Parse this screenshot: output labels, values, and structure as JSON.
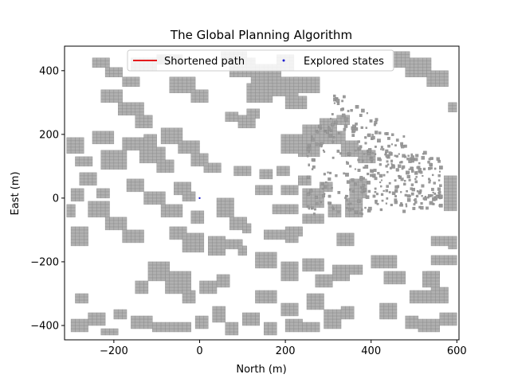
{
  "chart_data": {
    "type": "scatter",
    "title": "The Global Planning Algorithm",
    "xlabel": "North (m)",
    "ylabel": "East (m)",
    "xlim": [
      -315,
      605
    ],
    "ylim": [
      -445,
      477
    ],
    "xticks": [
      -200,
      0,
      200,
      400,
      600
    ],
    "yticks": [
      -400,
      -200,
      0,
      200,
      400
    ],
    "xtick_labels": [
      "−200",
      "0",
      "200",
      "400",
      "600"
    ],
    "ytick_labels": [
      "−400",
      "−200",
      "0",
      "200",
      "400"
    ],
    "grid": false,
    "legend": {
      "placement": "top-center",
      "columns": 2,
      "entries": [
        {
          "label": "Shortened path",
          "color": "#e41a1c",
          "marker": "line"
        },
        {
          "label": "Explored states",
          "color": "#1f1fd0",
          "marker": "dot"
        }
      ]
    },
    "series": [
      {
        "name": "Shortened path",
        "color": "#e41a1c",
        "points": []
      },
      {
        "name": "Explored states",
        "color": "#1f1fd0",
        "points": [
          [
            0,
            0
          ]
        ]
      }
    ],
    "obstacle_cell_size": 10,
    "obstacle_color": "#b0b0b0",
    "obstacle_edge_color": "#8a8a8a",
    "obstacles": [
      [
        -250,
        410,
        40,
        30
      ],
      [
        -220,
        380,
        40,
        30
      ],
      [
        -180,
        350,
        40,
        30
      ],
      [
        -160,
        400,
        60,
        40
      ],
      [
        -100,
        420,
        60,
        30
      ],
      [
        -70,
        330,
        60,
        50
      ],
      [
        -20,
        300,
        40,
        40
      ],
      [
        -230,
        300,
        50,
        40
      ],
      [
        -190,
        260,
        60,
        40
      ],
      [
        -150,
        220,
        40,
        40
      ],
      [
        -180,
        150,
        60,
        40
      ],
      [
        -140,
        110,
        60,
        50
      ],
      [
        -100,
        80,
        40,
        40
      ],
      [
        -230,
        90,
        60,
        60
      ],
      [
        -280,
        40,
        40,
        40
      ],
      [
        -310,
        140,
        40,
        50
      ],
      [
        -250,
        170,
        50,
        40
      ],
      [
        -290,
        100,
        40,
        30
      ],
      [
        -130,
        160,
        30,
        40
      ],
      [
        -90,
        170,
        50,
        50
      ],
      [
        -50,
        140,
        50,
        40
      ],
      [
        -20,
        100,
        40,
        40
      ],
      [
        10,
        80,
        40,
        30
      ],
      [
        -170,
        20,
        40,
        40
      ],
      [
        -130,
        -20,
        50,
        40
      ],
      [
        -90,
        -60,
        50,
        40
      ],
      [
        -60,
        10,
        40,
        40
      ],
      [
        -40,
        -10,
        30,
        30
      ],
      [
        -300,
        -10,
        30,
        40
      ],
      [
        -260,
        -60,
        50,
        50
      ],
      [
        -220,
        -100,
        50,
        40
      ],
      [
        -180,
        -140,
        50,
        40
      ],
      [
        -300,
        -150,
        40,
        60
      ],
      [
        -240,
        0,
        30,
        30
      ],
      [
        -310,
        -60,
        20,
        40
      ],
      [
        -20,
        -80,
        30,
        40
      ],
      [
        40,
        -60,
        40,
        60
      ],
      [
        70,
        -100,
        40,
        40
      ],
      [
        100,
        -110,
        20,
        30
      ],
      [
        -70,
        -130,
        40,
        40
      ],
      [
        -40,
        -170,
        50,
        60
      ],
      [
        20,
        -180,
        40,
        60
      ],
      [
        60,
        -160,
        40,
        30
      ],
      [
        90,
        -180,
        20,
        30
      ],
      [
        -120,
        -260,
        50,
        60
      ],
      [
        -80,
        -300,
        60,
        70
      ],
      [
        -40,
        -330,
        30,
        40
      ],
      [
        -150,
        -300,
        30,
        40
      ],
      [
        -200,
        -380,
        30,
        30
      ],
      [
        -160,
        -410,
        50,
        40
      ],
      [
        -110,
        -420,
        50,
        30
      ],
      [
        -60,
        -420,
        40,
        30
      ],
      [
        -10,
        -410,
        30,
        40
      ],
      [
        30,
        -390,
        30,
        50
      ],
      [
        60,
        -430,
        30,
        40
      ],
      [
        100,
        -400,
        40,
        40
      ],
      [
        150,
        -430,
        30,
        40
      ],
      [
        0,
        -300,
        40,
        40
      ],
      [
        40,
        -280,
        30,
        40
      ],
      [
        -300,
        -420,
        40,
        40
      ],
      [
        -260,
        -400,
        40,
        40
      ],
      [
        -230,
        -430,
        40,
        20
      ],
      [
        -290,
        -330,
        30,
        30
      ],
      [
        120,
        360,
        70,
        60
      ],
      [
        160,
        320,
        70,
        60
      ],
      [
        110,
        300,
        60,
        60
      ],
      [
        70,
        380,
        60,
        60
      ],
      [
        50,
        420,
        60,
        40
      ],
      [
        180,
        400,
        40,
        50
      ],
      [
        220,
        330,
        60,
        50
      ],
      [
        200,
        280,
        50,
        40
      ],
      [
        90,
        220,
        40,
        40
      ],
      [
        110,
        250,
        30,
        30
      ],
      [
        60,
        240,
        30,
        30
      ],
      [
        190,
        140,
        70,
        60
      ],
      [
        240,
        170,
        60,
        60
      ],
      [
        280,
        210,
        40,
        40
      ],
      [
        300,
        170,
        40,
        40
      ],
      [
        230,
        130,
        50,
        40
      ],
      [
        320,
        230,
        30,
        30
      ],
      [
        330,
        130,
        40,
        50
      ],
      [
        370,
        110,
        40,
        40
      ],
      [
        80,
        70,
        40,
        30
      ],
      [
        140,
        60,
        30,
        30
      ],
      [
        180,
        70,
        30,
        30
      ],
      [
        240,
        -30,
        50,
        60
      ],
      [
        190,
        10,
        40,
        30
      ],
      [
        130,
        10,
        40,
        30
      ],
      [
        230,
        40,
        30,
        30
      ],
      [
        280,
        20,
        30,
        30
      ],
      [
        170,
        -50,
        60,
        30
      ],
      [
        240,
        -80,
        50,
        30
      ],
      [
        300,
        -60,
        30,
        40
      ],
      [
        340,
        -60,
        40,
        60
      ],
      [
        350,
        0,
        40,
        60
      ],
      [
        150,
        -130,
        50,
        30
      ],
      [
        200,
        -120,
        40,
        30
      ],
      [
        130,
        -220,
        50,
        50
      ],
      [
        190,
        -260,
        40,
        60
      ],
      [
        240,
        -230,
        50,
        40
      ],
      [
        270,
        -280,
        40,
        40
      ],
      [
        310,
        -260,
        40,
        50
      ],
      [
        350,
        -240,
        30,
        30
      ],
      [
        130,
        -330,
        50,
        40
      ],
      [
        190,
        -370,
        40,
        40
      ],
      [
        250,
        -350,
        40,
        50
      ],
      [
        290,
        -410,
        40,
        60
      ],
      [
        330,
        -380,
        30,
        40
      ],
      [
        200,
        -420,
        40,
        40
      ],
      [
        240,
        -420,
        40,
        30
      ],
      [
        400,
        -220,
        60,
        40
      ],
      [
        430,
        -270,
        50,
        40
      ],
      [
        520,
        -280,
        40,
        50
      ],
      [
        490,
        -330,
        50,
        40
      ],
      [
        540,
        -330,
        40,
        50
      ],
      [
        420,
        -380,
        40,
        50
      ],
      [
        480,
        -410,
        30,
        40
      ],
      [
        510,
        -420,
        50,
        40
      ],
      [
        560,
        -400,
        40,
        40
      ],
      [
        540,
        -150,
        40,
        30
      ],
      [
        540,
        -210,
        30,
        30
      ],
      [
        570,
        -210,
        30,
        30
      ],
      [
        580,
        -160,
        20,
        40
      ],
      [
        530,
        -250,
        30,
        20
      ],
      [
        480,
        380,
        60,
        60
      ],
      [
        450,
        410,
        40,
        50
      ],
      [
        530,
        350,
        50,
        50
      ],
      [
        580,
        270,
        20,
        30
      ],
      [
        570,
        -40,
        30,
        110
      ],
      [
        200,
        -140,
        30,
        20
      ],
      [
        320,
        -150,
        40,
        40
      ]
    ],
    "scatter_obstacles": "dense cluster of small scattered obstacle cells roughly x 240..560, y -60..400"
  }
}
